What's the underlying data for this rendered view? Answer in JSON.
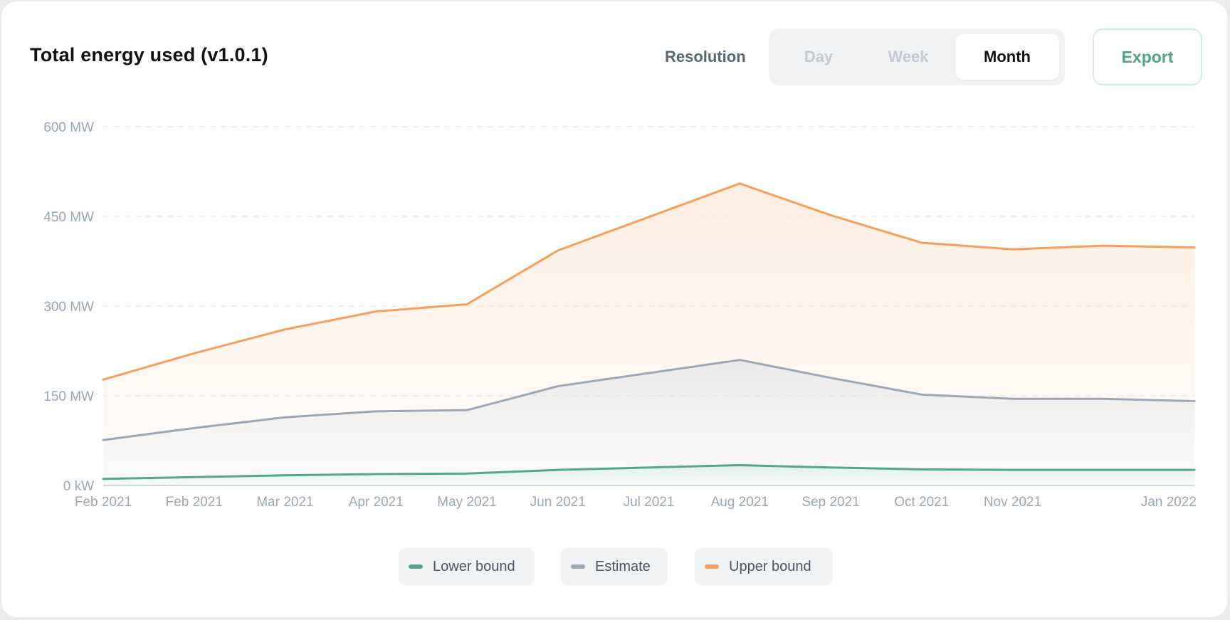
{
  "header": {
    "title": "Total energy used (v1.0.1)",
    "resolution_label": "Resolution",
    "resolution_options": [
      {
        "label": "Day",
        "active": false
      },
      {
        "label": "Week",
        "active": false
      },
      {
        "label": "Month",
        "active": true
      }
    ],
    "export_label": "Export"
  },
  "colors": {
    "lower": "#52a78e",
    "estimate": "#9ea7b5",
    "upper": "#f79e5c",
    "accent": "#4ea58a"
  },
  "chart_data": {
    "type": "area",
    "title": "Total energy used (v1.0.1)",
    "x": [
      "Feb 2021",
      "Feb 2021",
      "Mar 2021",
      "Apr 2021",
      "May 2021",
      "Jun 2021",
      "Jul 2021",
      "Aug 2021",
      "Sep 2021",
      "Oct 2021",
      "Nov 2021",
      "",
      "Jan 2022"
    ],
    "series": [
      {
        "name": "Lower bound",
        "values": [
          11,
          14,
          17,
          19,
          20,
          26,
          30,
          34,
          30,
          27,
          26,
          26,
          26
        ]
      },
      {
        "name": "Estimate",
        "values": [
          76,
          96,
          114,
          124,
          126,
          166,
          188,
          210,
          180,
          152,
          145,
          145,
          141
        ]
      },
      {
        "name": "Upper bound",
        "values": [
          177,
          221,
          261,
          291,
          303,
          393,
          449,
          505,
          452,
          406,
          395,
          401,
          398
        ]
      }
    ],
    "y_ticks": [
      "0 kW",
      "150 MW",
      "300 MW",
      "450 MW",
      "600 MW"
    ],
    "y_tick_values": [
      0,
      150,
      300,
      450,
      600
    ],
    "ylim": [
      0,
      600
    ],
    "y_unit": "MW",
    "grid": true,
    "legend_position": "bottom-center"
  }
}
